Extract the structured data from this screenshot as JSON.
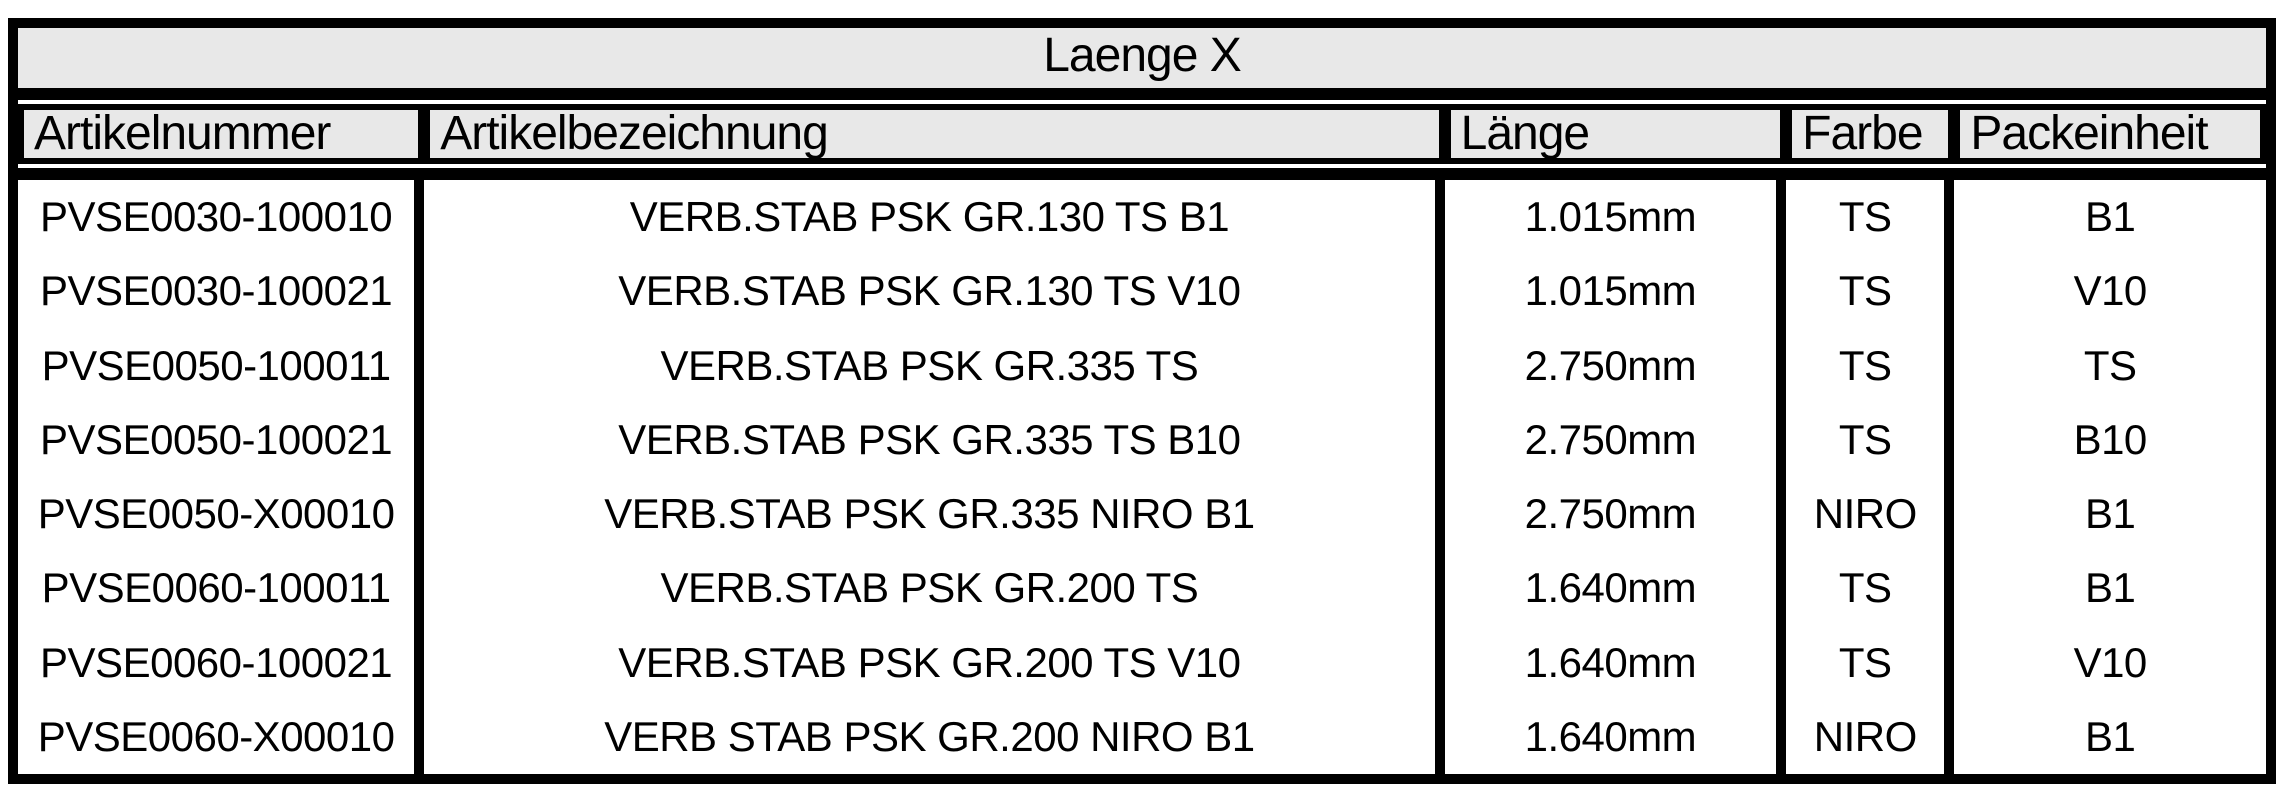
{
  "title": "Laenge X",
  "table": {
    "headers": [
      "Artikelnummer",
      "Artikelbezeichnung",
      "Länge",
      "Farbe",
      "Packeinheit"
    ],
    "rows": [
      [
        "PVSE0030-100010",
        "VERB.STAB PSK GR.130 TS B1",
        "1.015mm",
        "TS",
        "B1"
      ],
      [
        "PVSE0030-100021",
        "VERB.STAB PSK GR.130 TS V10",
        "1.015mm",
        "TS",
        "V10"
      ],
      [
        "PVSE0050-100011",
        "VERB.STAB PSK GR.335 TS",
        "2.750mm",
        "TS",
        "TS"
      ],
      [
        "PVSE0050-100021",
        "VERB.STAB PSK GR.335 TS B10",
        "2.750mm",
        "TS",
        "B10"
      ],
      [
        "PVSE0050-X00010",
        "VERB.STAB PSK GR.335 NIRO B1",
        "2.750mm",
        "NIRO",
        "B1"
      ],
      [
        "PVSE0060-100011",
        "VERB.STAB PSK GR.200 TS",
        "1.640mm",
        "TS",
        "B1"
      ],
      [
        "PVSE0060-100021",
        "VERB.STAB PSK GR.200 TS V10",
        "1.640mm",
        "TS",
        "V10"
      ],
      [
        "PVSE0060-X00010",
        "VERB STAB PSK GR.200 NIRO B1",
        "1.640mm",
        "NIRO",
        "B1"
      ]
    ],
    "colors": {
      "border": "#000000",
      "header_bg": "#e8e8e8",
      "text": "#000000",
      "data_bg": "#ffffff"
    }
  }
}
